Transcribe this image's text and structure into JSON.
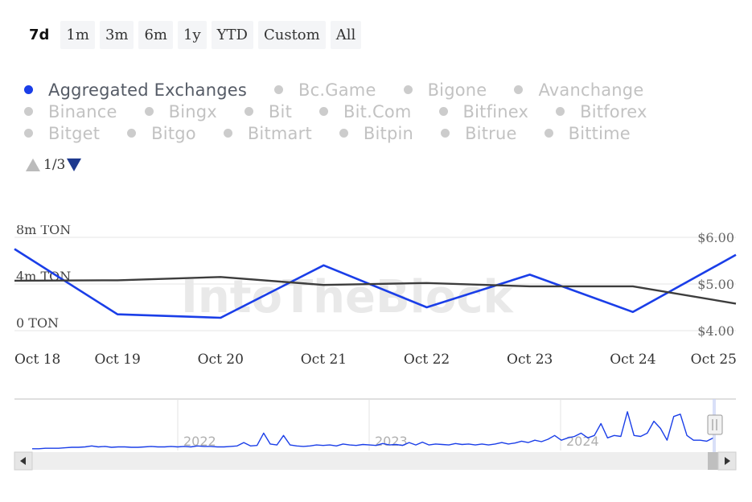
{
  "range_buttons": [
    "7d",
    "1m",
    "3m",
    "6m",
    "1y",
    "YTD",
    "Custom",
    "All"
  ],
  "range_active": "7d",
  "legend": {
    "rows": [
      [
        "Aggregated Exchanges",
        "Bc.Game",
        "Bigone",
        "Avanchange"
      ],
      [
        "Binance",
        "Bingx",
        "Bit",
        "Bit.Com",
        "Bitfinex",
        "Bitforex"
      ],
      [
        "Bitget",
        "Bitgo",
        "Bitmart",
        "Bitpin",
        "Bitrue",
        "Bittime"
      ]
    ],
    "active": "Aggregated Exchanges"
  },
  "pager": {
    "text": "1/3"
  },
  "watermark": "IntoTheBlock",
  "colors": {
    "volume": "#1a3ee8",
    "price": "#3d3d3d",
    "grid": "#e6e6e6",
    "legend_active_dot": "#1a3ee8"
  },
  "chart_data": {
    "type": "line",
    "x": [
      "Oct 18",
      "Oct 19",
      "Oct 20",
      "Oct 21",
      "Oct 22",
      "Oct 23",
      "Oct 24",
      "Oct 25"
    ],
    "x_tick_labels": [
      "Oct 18",
      "Oct 19",
      "Oct 20",
      "Oct 21",
      "Oct 22",
      "Oct 23",
      "Oct 24",
      "Oct 25"
    ],
    "y_left": {
      "ticks": [
        "0 TON",
        "4m TON",
        "8m TON"
      ],
      "range": [
        0,
        8000000
      ]
    },
    "y_right": {
      "ticks": [
        "$4.00",
        "$5.00",
        "$6.00"
      ],
      "range": [
        4.0,
        6.0
      ]
    },
    "series": [
      {
        "axis": "left",
        "color": "#1a3ee8",
        "values": [
          7000000,
          1400000,
          1100000,
          5600000,
          2000000,
          4800000,
          1600000,
          6500000
        ]
      },
      {
        "axis": "right",
        "color": "#3d3d3d",
        "values": [
          5.07,
          5.08,
          5.15,
          4.98,
          5.02,
          4.95,
          4.95,
          4.58
        ]
      }
    ],
    "grid": true
  },
  "navigator": {
    "year_labels": [
      "2022",
      "2023",
      "2024"
    ],
    "values": [
      0.02,
      0.02,
      0.03,
      0.03,
      0.03,
      0.04,
      0.05,
      0.05,
      0.06,
      0.08,
      0.06,
      0.07,
      0.05,
      0.06,
      0.06,
      0.05,
      0.05,
      0.06,
      0.07,
      0.06,
      0.06,
      0.07,
      0.06,
      0.07,
      0.06,
      0.08,
      0.07,
      0.07,
      0.06,
      0.06,
      0.07,
      0.08,
      0.15,
      0.08,
      0.09,
      0.35,
      0.12,
      0.1,
      0.3,
      0.1,
      0.08,
      0.07,
      0.08,
      0.1,
      0.09,
      0.1,
      0.08,
      0.12,
      0.1,
      0.09,
      0.11,
      0.1,
      0.09,
      0.13,
      0.1,
      0.11,
      0.09,
      0.15,
      0.1,
      0.16,
      0.1,
      0.12,
      0.11,
      0.1,
      0.13,
      0.11,
      0.12,
      0.1,
      0.12,
      0.1,
      0.12,
      0.15,
      0.12,
      0.14,
      0.18,
      0.15,
      0.2,
      0.17,
      0.22,
      0.3,
      0.2,
      0.25,
      0.28,
      0.35,
      0.25,
      0.3,
      0.55,
      0.25,
      0.3,
      0.28,
      0.8,
      0.3,
      0.28,
      0.35,
      0.6,
      0.45,
      0.2,
      0.7,
      0.75,
      0.3,
      0.2,
      0.2,
      0.18,
      0.25
    ]
  }
}
